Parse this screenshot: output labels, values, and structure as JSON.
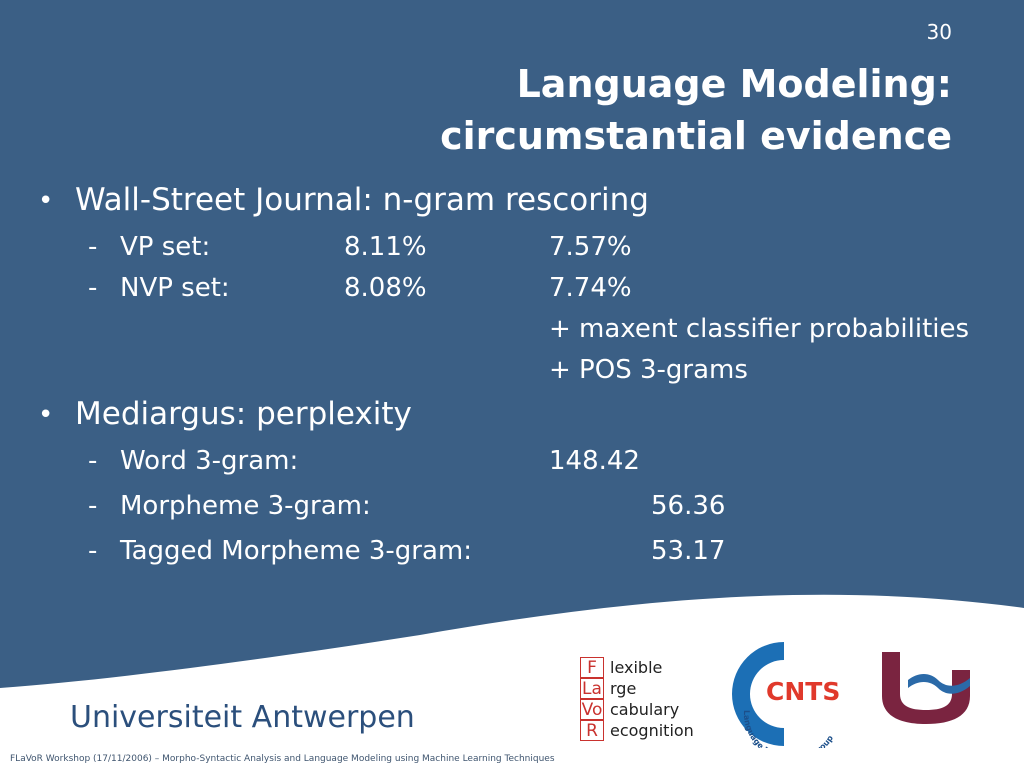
{
  "slide": {
    "page_number": "30",
    "title_line1": "Language Modeling:",
    "title_line2": "circumstantial evidence",
    "bullets": [
      {
        "text": "Wall-Street Journal: n-gram rescoring",
        "rows": [
          {
            "label": "VP set:",
            "col1": "8.11%",
            "col2": "7.57%"
          },
          {
            "label": "NVP set:",
            "col1": "8.08%",
            "col2": "7.74%"
          }
        ],
        "notes": [
          "+ maxent classifier probabilities",
          "+ POS 3-grams"
        ]
      },
      {
        "text": "Mediargus: perplexity",
        "rows": [
          {
            "label": "Word 3-gram:",
            "value": "148.42"
          },
          {
            "label": "Morpheme 3-gram:",
            "value": "56.36"
          },
          {
            "label": "Tagged Morpheme 3-gram:",
            "value": "53.17"
          }
        ]
      }
    ],
    "bullet_symbol": "•",
    "dash_symbol": "-"
  },
  "branding": {
    "university": "Universiteit Antwerpen",
    "flavor": [
      {
        "letter": "F",
        "word": "lexible"
      },
      {
        "letter": "La",
        "word": "rge"
      },
      {
        "letter": "Vo",
        "word": "cabulary"
      },
      {
        "letter": "R",
        "word": "ecognition"
      }
    ],
    "cnts_label": "CNTS",
    "cnts_subtitle": "Language Technology Group"
  },
  "footer": "FLaVoR Workshop (17/11/2006) – Morpho-Syntactic Analysis and Language Modeling using Machine Learning Techniques",
  "colors": {
    "background": "#3b5f85",
    "text": "#ffffff",
    "brand_blue": "#2b4f7c",
    "flavor_red": "#c9322e",
    "cnts_blue": "#1c6fb5",
    "cnts_red": "#e0392b",
    "ua_maroon": "#7a2440"
  }
}
